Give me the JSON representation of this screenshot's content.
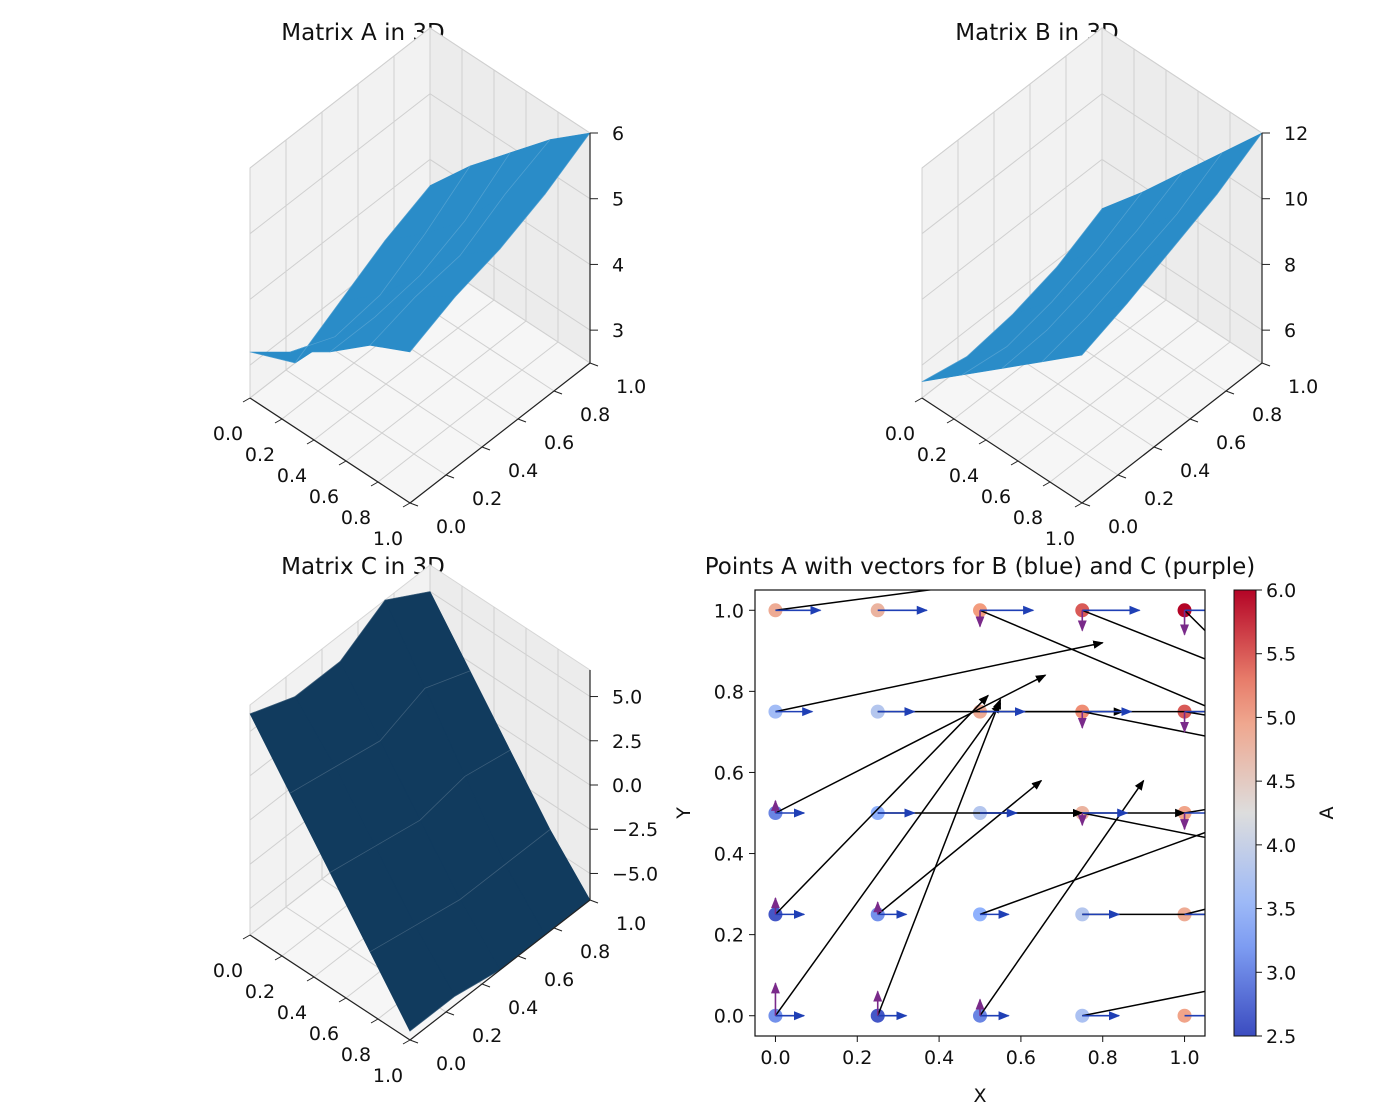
{
  "chart_data": [
    {
      "type": "surface3d",
      "title": "Matrix A in 3D",
      "surface_color": "#2a8cc8",
      "x": [
        0,
        0.25,
        0.5,
        0.75,
        1
      ],
      "y": [
        0,
        0.25,
        0.5,
        0.75,
        1
      ],
      "xticks": [
        "0.0",
        "0.2",
        "0.4",
        "0.6",
        "0.8",
        "1.0"
      ],
      "yticks": [
        "0.0",
        "0.2",
        "0.4",
        "0.6",
        "0.8",
        "1.0"
      ],
      "zticks": [
        "3",
        "4",
        "5",
        "6"
      ],
      "zlim": [
        2.5,
        6
      ],
      "z": [
        [
          3.2,
          3.6,
          4.0,
          4.5,
          4.8
        ],
        [
          2.5,
          3.3,
          4.0,
          4.7,
          5.1
        ],
        [
          2.9,
          3.4,
          4.1,
          4.8,
          5.3
        ],
        [
          3.3,
          3.8,
          4.4,
          5.2,
          5.6
        ],
        [
          3.6,
          4.3,
          4.9,
          5.5,
          6.0
        ]
      ]
    },
    {
      "type": "surface3d",
      "title": "Matrix B in 3D",
      "surface_color": "#2a8cc8",
      "x": [
        0,
        0.25,
        0.5,
        0.75,
        1
      ],
      "y": [
        0,
        0.25,
        0.5,
        0.75,
        1
      ],
      "xticks": [
        "0.0",
        "0.2",
        "0.4",
        "0.6",
        "0.8",
        "1.0"
      ],
      "yticks": [
        "0.0",
        "0.2",
        "0.4",
        "0.6",
        "0.8",
        "1.0"
      ],
      "zticks": [
        "6",
        "8",
        "10",
        "12"
      ],
      "zlim": [
        5,
        12
      ],
      "z": [
        [
          5.5,
          6.5,
          7.5,
          8.5,
          9.5
        ],
        [
          5.2,
          6.3,
          7.6,
          8.8,
          10.0
        ],
        [
          5.4,
          6.6,
          8.0,
          9.3,
          10.6
        ],
        [
          5.8,
          7.1,
          8.5,
          9.8,
          11.2
        ],
        [
          6.5,
          7.8,
          9.2,
          10.6,
          12.0
        ]
      ]
    },
    {
      "type": "surface3d",
      "title": "Matrix C in 3D",
      "surface_color": "#113b5e",
      "x": [
        0,
        0.25,
        0.5,
        0.75,
        1
      ],
      "y": [
        0,
        0.25,
        0.5,
        0.75,
        1
      ],
      "xticks": [
        "0.0",
        "0.2",
        "0.4",
        "0.6",
        "0.8",
        "1.0"
      ],
      "yticks": [
        "0.0",
        "0.2",
        "0.4",
        "0.6",
        "0.8",
        "1.0"
      ],
      "zticks": [
        "5.0",
        "2.5",
        "0.0",
        "−2.5",
        "−5.0"
      ],
      "zlim": [
        -6.5,
        6.5
      ],
      "z": [
        [
          6.0,
          3.0,
          0.0,
          -3.0,
          -6.0
        ],
        [
          5.0,
          2.5,
          -0.5,
          -3.5,
          -6.0
        ],
        [
          5.0,
          2.0,
          -1.0,
          -4.0,
          -6.5
        ],
        [
          6.5,
          3.0,
          -0.5,
          -4.0,
          -6.5
        ],
        [
          5.0,
          2.0,
          -1.0,
          -4.0,
          -6.5
        ]
      ]
    },
    {
      "type": "scatter_quiver",
      "title": "Points A with vectors for B (blue) and C (purple)",
      "xlabel": "X",
      "ylabel": "Y",
      "xlim": [
        -0.05,
        1.05
      ],
      "ylim": [
        -0.05,
        1.05
      ],
      "xticks": [
        "0.0",
        "0.2",
        "0.4",
        "0.6",
        "0.8",
        "1.0"
      ],
      "yticks": [
        "0.0",
        "0.2",
        "0.4",
        "0.6",
        "0.8",
        "1.0"
      ],
      "b_color": "#1f3fb5",
      "c_color": "#7a2a8a",
      "long_arrow_color": "#000000",
      "colorbar": {
        "label": "A",
        "range": [
          2.5,
          6.0
        ],
        "ticks": [
          "2.5",
          "3.0",
          "3.5",
          "4.0",
          "4.5",
          "5.0",
          "5.5",
          "6.0"
        ],
        "colormap": "coolwarm"
      },
      "points": [
        {
          "x": 0.0,
          "y": 0.0,
          "a": 3.1
        },
        {
          "x": 0.25,
          "y": 0.0,
          "a": 2.6
        },
        {
          "x": 0.5,
          "y": 0.0,
          "a": 3.0
        },
        {
          "x": 0.75,
          "y": 0.0,
          "a": 3.7
        },
        {
          "x": 1.0,
          "y": 0.0,
          "a": 5.0
        },
        {
          "x": 0.0,
          "y": 0.25,
          "a": 2.6
        },
        {
          "x": 0.25,
          "y": 0.25,
          "a": 3.1
        },
        {
          "x": 0.5,
          "y": 0.25,
          "a": 3.4
        },
        {
          "x": 0.75,
          "y": 0.25,
          "a": 3.8
        },
        {
          "x": 1.0,
          "y": 0.25,
          "a": 4.9
        },
        {
          "x": 0.0,
          "y": 0.5,
          "a": 3.0
        },
        {
          "x": 0.25,
          "y": 0.5,
          "a": 3.4
        },
        {
          "x": 0.5,
          "y": 0.5,
          "a": 3.8
        },
        {
          "x": 0.75,
          "y": 0.5,
          "a": 4.8
        },
        {
          "x": 1.0,
          "y": 0.5,
          "a": 5.0
        },
        {
          "x": 0.0,
          "y": 0.75,
          "a": 3.6
        },
        {
          "x": 0.25,
          "y": 0.75,
          "a": 3.8
        },
        {
          "x": 0.5,
          "y": 0.75,
          "a": 4.9
        },
        {
          "x": 0.75,
          "y": 0.75,
          "a": 5.2
        },
        {
          "x": 1.0,
          "y": 0.75,
          "a": 5.5
        },
        {
          "x": 0.0,
          "y": 1.0,
          "a": 4.9
        },
        {
          "x": 0.25,
          "y": 1.0,
          "a": 4.8
        },
        {
          "x": 0.5,
          "y": 1.0,
          "a": 5.1
        },
        {
          "x": 0.75,
          "y": 1.0,
          "a": 5.5
        },
        {
          "x": 1.0,
          "y": 1.0,
          "a": 6.0
        }
      ],
      "b_vectors": [
        {
          "x": 0.0,
          "y": 0.0,
          "dx": 0.07,
          "dy": 0
        },
        {
          "x": 0.25,
          "y": 0.0,
          "dx": 0.07,
          "dy": 0
        },
        {
          "x": 0.5,
          "y": 0.0,
          "dx": 0.07,
          "dy": 0
        },
        {
          "x": 0.75,
          "y": 0.0,
          "dx": 0.09,
          "dy": 0
        },
        {
          "x": 1.0,
          "y": 0.0,
          "dx": 0.08,
          "dy": 0
        },
        {
          "x": 0.0,
          "y": 0.25,
          "dx": 0.07,
          "dy": 0
        },
        {
          "x": 0.25,
          "y": 0.25,
          "dx": 0.07,
          "dy": 0
        },
        {
          "x": 0.5,
          "y": 0.25,
          "dx": 0.07,
          "dy": 0
        },
        {
          "x": 0.75,
          "y": 0.25,
          "dx": 0.09,
          "dy": 0
        },
        {
          "x": 1.0,
          "y": 0.25,
          "dx": 0.08,
          "dy": 0
        },
        {
          "x": 0.0,
          "y": 0.5,
          "dx": 0.07,
          "dy": 0
        },
        {
          "x": 0.25,
          "y": 0.5,
          "dx": 0.09,
          "dy": 0
        },
        {
          "x": 0.5,
          "y": 0.5,
          "dx": 0.09,
          "dy": 0
        },
        {
          "x": 0.75,
          "y": 0.5,
          "dx": 0.11,
          "dy": 0
        },
        {
          "x": 1.0,
          "y": 0.5,
          "dx": 0.08,
          "dy": 0
        },
        {
          "x": 0.0,
          "y": 0.75,
          "dx": 0.09,
          "dy": 0
        },
        {
          "x": 0.25,
          "y": 0.75,
          "dx": 0.09,
          "dy": 0
        },
        {
          "x": 0.5,
          "y": 0.75,
          "dx": 0.11,
          "dy": 0
        },
        {
          "x": 0.75,
          "y": 0.75,
          "dx": 0.12,
          "dy": 0
        },
        {
          "x": 1.0,
          "y": 0.75,
          "dx": 0.09,
          "dy": 0
        },
        {
          "x": 0.0,
          "y": 1.0,
          "dx": 0.11,
          "dy": 0
        },
        {
          "x": 0.25,
          "y": 1.0,
          "dx": 0.12,
          "dy": 0
        },
        {
          "x": 0.5,
          "y": 1.0,
          "dx": 0.13,
          "dy": 0
        },
        {
          "x": 0.75,
          "y": 1.0,
          "dx": 0.14,
          "dy": 0
        },
        {
          "x": 1.0,
          "y": 1.0,
          "dx": 0.12,
          "dy": 0
        }
      ],
      "c_vectors": [
        {
          "x": 0.0,
          "y": 0.0,
          "dx": 0,
          "dy": 0.08
        },
        {
          "x": 0.25,
          "y": 0.0,
          "dx": 0,
          "dy": 0.06
        },
        {
          "x": 0.5,
          "y": 0.0,
          "dx": 0,
          "dy": 0.04
        },
        {
          "x": 0.0,
          "y": 0.25,
          "dx": 0,
          "dy": 0.04
        },
        {
          "x": 0.25,
          "y": 0.25,
          "dx": 0,
          "dy": 0.03
        },
        {
          "x": 0.0,
          "y": 0.5,
          "dx": 0,
          "dy": 0.03
        },
        {
          "x": 0.75,
          "y": 0.5,
          "dx": 0,
          "dy": -0.03
        },
        {
          "x": 1.0,
          "y": 0.5,
          "dx": 0,
          "dy": -0.04
        },
        {
          "x": 0.75,
          "y": 0.75,
          "dx": 0,
          "dy": -0.04
        },
        {
          "x": 1.0,
          "y": 0.75,
          "dx": 0,
          "dy": -0.05
        },
        {
          "x": 0.5,
          "y": 1.0,
          "dx": 0,
          "dy": -0.04
        },
        {
          "x": 0.75,
          "y": 1.0,
          "dx": 0,
          "dy": -0.05
        },
        {
          "x": 1.0,
          "y": 1.0,
          "dx": 0,
          "dy": -0.06
        }
      ],
      "long_arrows": [
        {
          "x": 0.0,
          "y": 0.0,
          "dx": 0.55,
          "dy": 0.77
        },
        {
          "x": 0.25,
          "y": 0.0,
          "dx": 0.3,
          "dy": 0.78
        },
        {
          "x": 0.5,
          "y": 0.0,
          "dx": 0.4,
          "dy": 0.58
        },
        {
          "x": 0.75,
          "y": 0.0,
          "dx": 0.5,
          "dy": 0.1
        },
        {
          "x": 0.0,
          "y": 0.25,
          "dx": 0.52,
          "dy": 0.54
        },
        {
          "x": 0.25,
          "y": 0.25,
          "dx": 0.4,
          "dy": 0.33
        },
        {
          "x": 0.5,
          "y": 0.25,
          "dx": 0.6,
          "dy": 0.22
        },
        {
          "x": 0.75,
          "y": 0.25,
          "dx": 0.5,
          "dy": 0.0
        },
        {
          "x": 1.0,
          "y": 0.25,
          "dx": 0.2,
          "dy": 0.05
        },
        {
          "x": 0.0,
          "y": 0.5,
          "dx": 0.66,
          "dy": 0.34
        },
        {
          "x": 0.25,
          "y": 0.5,
          "dx": 0.5,
          "dy": 0.0
        },
        {
          "x": 0.5,
          "y": 0.5,
          "dx": 0.5,
          "dy": 0.0
        },
        {
          "x": 0.75,
          "y": 0.5,
          "dx": 0.5,
          "dy": -0.1
        },
        {
          "x": 1.0,
          "y": 0.5,
          "dx": 0.3,
          "dy": 0.05
        },
        {
          "x": 0.0,
          "y": 0.75,
          "dx": 0.8,
          "dy": 0.17
        },
        {
          "x": 0.25,
          "y": 0.75,
          "dx": 0.6,
          "dy": 0.0
        },
        {
          "x": 0.5,
          "y": 0.75,
          "dx": 0.6,
          "dy": 0.0
        },
        {
          "x": 0.75,
          "y": 0.75,
          "dx": 0.5,
          "dy": -0.1
        },
        {
          "x": 1.0,
          "y": 0.75,
          "dx": 0.3,
          "dy": -0.05
        },
        {
          "x": 0.0,
          "y": 1.0,
          "dx": 0.75,
          "dy": 0.1
        },
        {
          "x": 0.5,
          "y": 1.0,
          "dx": 0.7,
          "dy": -0.3
        },
        {
          "x": 0.75,
          "y": 1.0,
          "dx": 0.5,
          "dy": -0.2
        },
        {
          "x": 1.0,
          "y": 1.0,
          "dx": 0.4,
          "dy": -0.4
        }
      ]
    }
  ]
}
